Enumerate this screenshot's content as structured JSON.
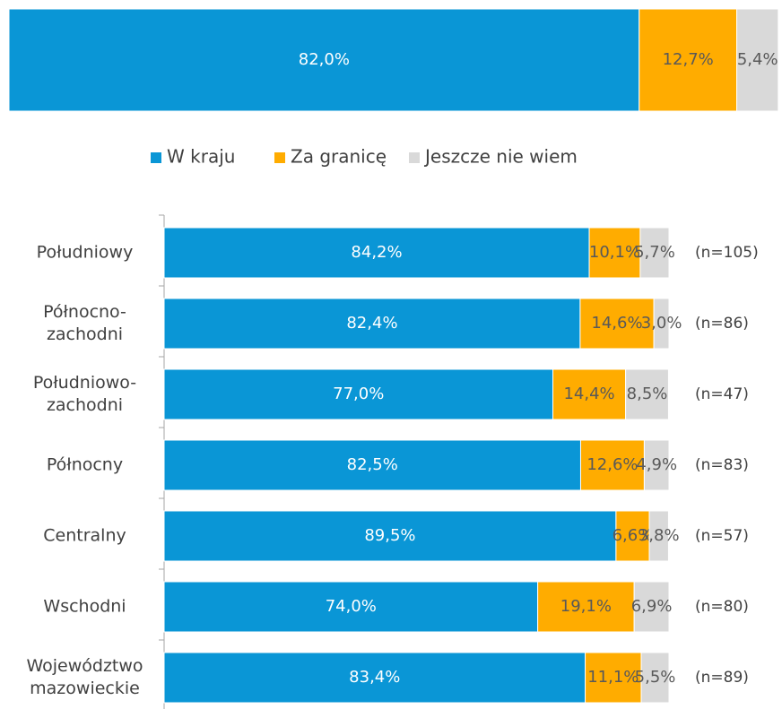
{
  "chart_data": [
    {
      "type": "bar",
      "orientation": "horizontal",
      "stacked": true,
      "categories": [
        null
      ],
      "xlim": [
        0,
        100
      ],
      "legend": "bottom",
      "series": [
        {
          "name": "W kraju",
          "color": "#0a96d6",
          "values": [
            82.0
          ],
          "value_labels": [
            "82,0%"
          ]
        },
        {
          "name": "Za granicę",
          "color": "#ffac00",
          "values": [
            12.7
          ],
          "value_labels": [
            "12,7%"
          ]
        },
        {
          "name": "Jeszcze nie wiem",
          "color": "#d9d9d9",
          "values": [
            5.4
          ],
          "value_labels": [
            "5,4%"
          ]
        }
      ]
    },
    {
      "type": "bar",
      "orientation": "horizontal",
      "stacked": true,
      "xlim": [
        0,
        100
      ],
      "categories": [
        "Południowy",
        "Północno-zachodni",
        "Południowo-zachodni",
        "Północny",
        "Centralny",
        "Wschodni",
        "Województwo mazowieckie"
      ],
      "annotations": [
        "(n=105)",
        "(n=86)",
        "(n=47)",
        "(n=83)",
        "(n=57)",
        "(n=80)",
        "(n=89)"
      ],
      "series": [
        {
          "color": "#0a96d6",
          "values": [
            84.2,
            82.4,
            77.0,
            82.5,
            89.5,
            74.0,
            83.4
          ],
          "value_labels": [
            "84,2%",
            "82,4%",
            "77,0%",
            "82,5%",
            "89,5%",
            "74,0%",
            "83,4%"
          ]
        },
        {
          "color": "#ffac00",
          "values": [
            10.1,
            14.6,
            14.4,
            12.6,
            6.6,
            19.1,
            11.1
          ],
          "value_labels": [
            "10,1%",
            "14,6%",
            "14,4%",
            "12,6%",
            "6,6%",
            "19,1%",
            "11,1%"
          ]
        },
        {
          "color": "#d9d9d9",
          "values": [
            5.7,
            3.0,
            8.5,
            4.9,
            3.8,
            6.9,
            5.5
          ],
          "value_labels": [
            "5,7%",
            "3,0%",
            "8,5%",
            "4,9%",
            "3,8%",
            "6,9%",
            "5,5%"
          ]
        }
      ]
    }
  ]
}
